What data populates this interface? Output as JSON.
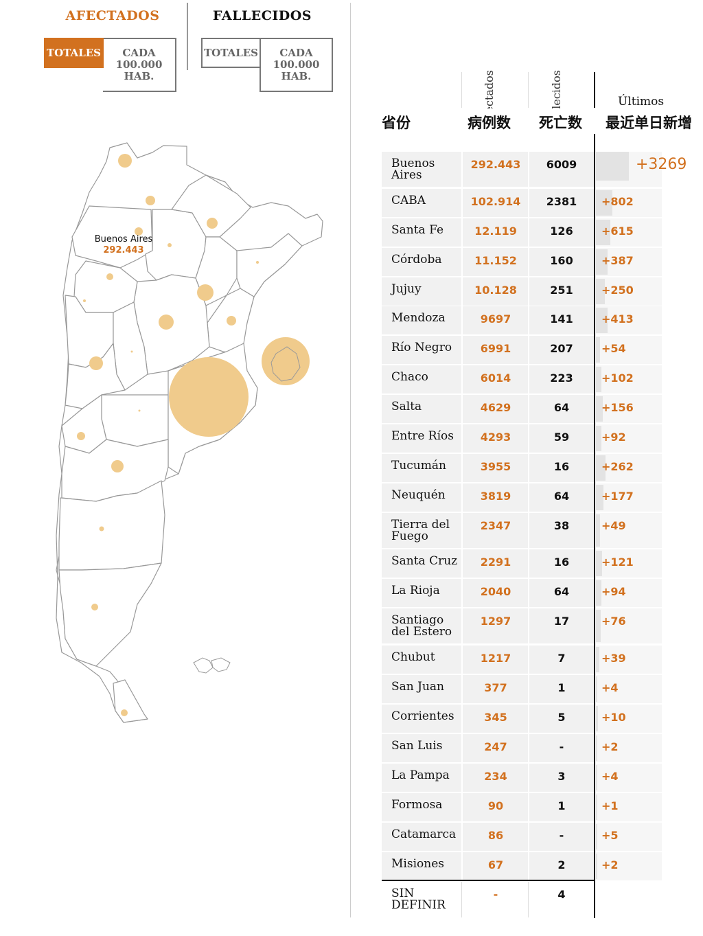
{
  "tabs": {
    "afectados": "AFECTADOS",
    "fallecidos": "FALLECIDOS",
    "totales": "TOTALES",
    "cada": "CADA\n100.000\nHAB."
  },
  "map": {
    "label_name": "Buenos Aires",
    "label_value": "292.443",
    "bubble_color": "#f0cb8c"
  },
  "table": {
    "head_province": "省份",
    "head_cases": "病例数",
    "head_deaths": "死亡数",
    "head_new": "最近单日新增",
    "rot_cases": "Afectados",
    "rot_deaths": "Fallecidos",
    "ultimos": "Últimos",
    "accent": "#d2711f",
    "rows": [
      {
        "name": "Buenos\nAires",
        "cases": "292.443",
        "deaths": "6009",
        "new": "+3269",
        "new_value": 3269
      },
      {
        "name": "CABA",
        "cases": "102.914",
        "deaths": "2381",
        "new": "+802",
        "new_value": 802
      },
      {
        "name": "Santa Fe",
        "cases": "12.119",
        "deaths": "126",
        "new": "+615",
        "new_value": 615
      },
      {
        "name": "Córdoba",
        "cases": "11.152",
        "deaths": "160",
        "new": "+387",
        "new_value": 387
      },
      {
        "name": "Jujuy",
        "cases": "10.128",
        "deaths": "251",
        "new": "+250",
        "new_value": 250
      },
      {
        "name": "Mendoza",
        "cases": "9697",
        "deaths": "141",
        "new": "+413",
        "new_value": 413
      },
      {
        "name": "Río Negro",
        "cases": "6991",
        "deaths": "207",
        "new": "+54",
        "new_value": 54
      },
      {
        "name": "Chaco",
        "cases": "6014",
        "deaths": "223",
        "new": "+102",
        "new_value": 102
      },
      {
        "name": "Salta",
        "cases": "4629",
        "deaths": "64",
        "new": "+156",
        "new_value": 156
      },
      {
        "name": "Entre Ríos",
        "cases": "4293",
        "deaths": "59",
        "new": "+92",
        "new_value": 92
      },
      {
        "name": "Tucumán",
        "cases": "3955",
        "deaths": "16",
        "new": "+262",
        "new_value": 262
      },
      {
        "name": "Neuquén",
        "cases": "3819",
        "deaths": "64",
        "new": "+177",
        "new_value": 177
      },
      {
        "name": "Tierra del\nFuego",
        "cases": "2347",
        "deaths": "38",
        "new": "+49",
        "new_value": 49
      },
      {
        "name": "Santa Cruz",
        "cases": "2291",
        "deaths": "16",
        "new": "+121",
        "new_value": 121
      },
      {
        "name": "La Rioja",
        "cases": "2040",
        "deaths": "64",
        "new": "+94",
        "new_value": 94
      },
      {
        "name": "Santiago\ndel Estero",
        "cases": "1297",
        "deaths": "17",
        "new": "+76",
        "new_value": 76
      },
      {
        "name": "Chubut",
        "cases": "1217",
        "deaths": "7",
        "new": "+39",
        "new_value": 39
      },
      {
        "name": "San Juan",
        "cases": "377",
        "deaths": "1",
        "new": "+4",
        "new_value": 4
      },
      {
        "name": "Corrientes",
        "cases": "345",
        "deaths": "5",
        "new": "+10",
        "new_value": 10
      },
      {
        "name": "San Luis",
        "cases": "247",
        "deaths": "-",
        "new": "+2",
        "new_value": 2
      },
      {
        "name": "La Pampa",
        "cases": "234",
        "deaths": "3",
        "new": "+4",
        "new_value": 4
      },
      {
        "name": "Formosa",
        "cases": "90",
        "deaths": "1",
        "new": "+1",
        "new_value": 1
      },
      {
        "name": "Catamarca",
        "cases": "86",
        "deaths": "-",
        "new": "+5",
        "new_value": 5
      },
      {
        "name": "Misiones",
        "cases": "67",
        "deaths": "2",
        "new": "+2",
        "new_value": 2
      },
      {
        "name": "SIN\nDEFINIR",
        "cases": "-",
        "deaths": "4",
        "new": "",
        "new_value": 0
      }
    ]
  }
}
